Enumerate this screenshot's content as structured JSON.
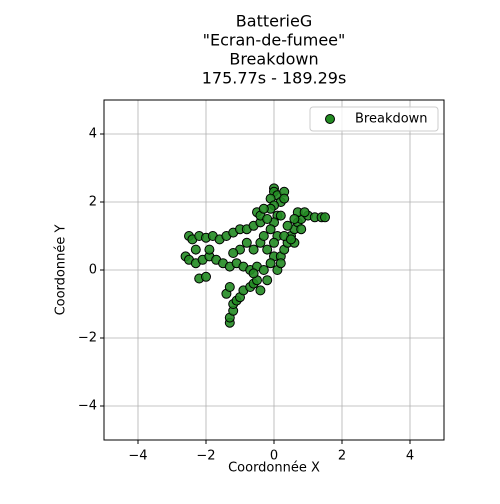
{
  "chart_data": {
    "type": "scatter",
    "title": [
      "BatterieG",
      "\"Ecran-de-fumee\"",
      "Breakdown",
      "175.77s - 189.29s"
    ],
    "xlabel": "Coordonnée X",
    "ylabel": "Coordonnée Y",
    "xlim": [
      -5,
      5
    ],
    "ylim": [
      -5,
      5
    ],
    "xticks": [
      {
        "value": -4,
        "label": "−4"
      },
      {
        "value": -2,
        "label": "−2"
      },
      0,
      2,
      4
    ],
    "yticks": [
      {
        "value": -4,
        "label": "−4"
      },
      {
        "value": -2,
        "label": "−2"
      },
      0,
      2,
      4
    ],
    "grid": true,
    "legend": "upper right",
    "edgecolor": "#000000",
    "x": [
      0,
      0,
      0.1,
      -0.1,
      0.2,
      0,
      -0.1,
      0.1,
      0,
      -0.1,
      0.1,
      0,
      -0.2,
      0,
      -0.1,
      0.3,
      0.3,
      -2.5,
      -2.4,
      -2.2,
      -2,
      -1.8,
      -1.6,
      -1.4,
      -1.2,
      -1,
      -0.8,
      -0.6,
      -0.4,
      -2.6,
      -2.5,
      -2.3,
      -2.1,
      -1.9,
      -1.7,
      -1.5,
      -1.3,
      -1.1,
      -0.9,
      -0.7,
      -0.5,
      -0.3,
      -2.2,
      -2,
      -1.9,
      -2.3,
      -1.3,
      -1.3,
      -1.2,
      -1.2,
      -1.1,
      -1,
      -0.9,
      -0.7,
      -0.6,
      -0.5,
      -0.6,
      -0.4,
      -0.2,
      -1.4,
      -1.3,
      0.2,
      0.3,
      0.4,
      0.5,
      0.6,
      0.7,
      0.8,
      1,
      1.2,
      1.4,
      1.5,
      0.7,
      0.9,
      0.6,
      0.8,
      0.3,
      0.5,
      0.2,
      0.4,
      0.1,
      0.2,
      0.6,
      -0.8,
      -0.6,
      -0.4,
      -1,
      -1.2,
      -0.3,
      -0.5,
      -0.4,
      -0.3,
      -0.2
    ],
    "series": [
      {
        "name": "Breakdown",
        "color": "#228b22",
        "values": [
          2.4,
          2.3,
          2.2,
          2.1,
          2,
          1.9,
          1.8,
          1.6,
          1.4,
          1.2,
          1,
          0.8,
          0.6,
          0.4,
          0.2,
          2.3,
          2.1,
          1,
          0.9,
          1,
          0.95,
          1,
          0.9,
          1,
          1.1,
          1.2,
          1.2,
          1.3,
          1.4,
          0.4,
          0.3,
          0.2,
          0.3,
          0.4,
          0.3,
          0.2,
          0.1,
          0.2,
          0.1,
          0,
          0.1,
          0,
          -0.25,
          -0.2,
          0.6,
          0.6,
          -1.55,
          -1.4,
          -1.2,
          -1,
          -0.9,
          -0.8,
          -0.6,
          -0.5,
          -0.4,
          -0.3,
          -0.1,
          -0.6,
          -0.3,
          -0.7,
          -0.5,
          0.4,
          0.6,
          0.8,
          1,
          1.2,
          1.4,
          1.5,
          1.6,
          1.55,
          1.55,
          1.55,
          1.7,
          1.7,
          0.8,
          1.2,
          1,
          0.9,
          1.6,
          1.3,
          0,
          0.2,
          1.5,
          0.8,
          0.6,
          0.8,
          0.6,
          0.5,
          1,
          1.7,
          1.6,
          1.8,
          1.5
        ]
      }
    ]
  }
}
